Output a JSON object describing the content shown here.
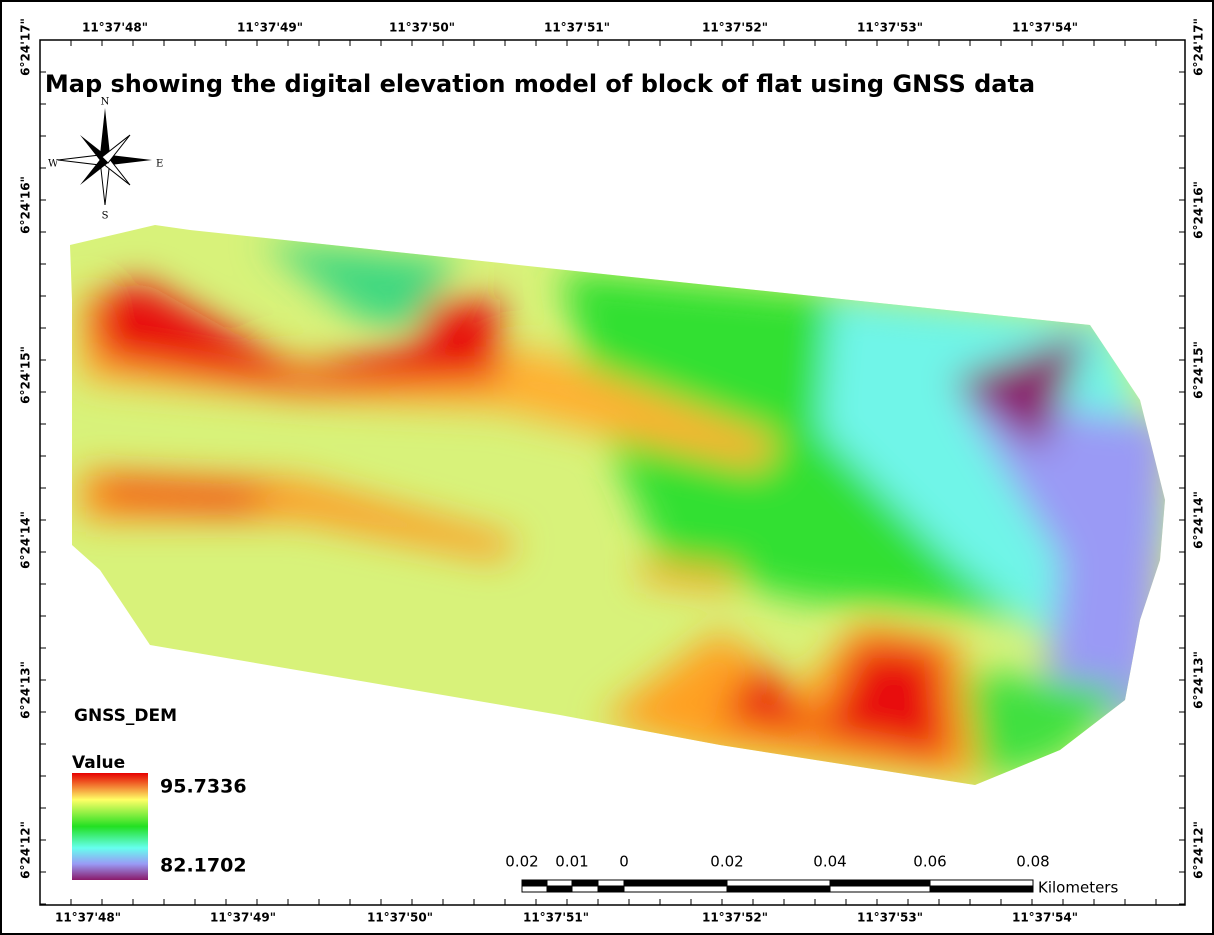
{
  "title": "Map showing the digital elevation model of block of flat using GNSS  data",
  "longitude_labels": [
    "11°37'48\"",
    "11°37'49\"",
    "11°37'50\"",
    "11°37'51\"",
    "11°37'52\"",
    "11°37'53\"",
    "11°37'54\""
  ],
  "latitude_labels": [
    "6°24'17\"",
    "6°24'16\"",
    "6°24'15\"",
    "6°24'14\"",
    "6°24'13\"",
    "6°24'12\""
  ],
  "north_arrow": {
    "n": "N",
    "e": "E",
    "s": "S",
    "w": "W"
  },
  "legend": {
    "title": "GNSS_DEM",
    "value_label": "Value",
    "high": "95.7336",
    "low": "82.1702"
  },
  "scale_bar": {
    "labels": [
      "0.02",
      "0.01",
      "0",
      "0.02",
      "0.04",
      "0.06",
      "0.08"
    ],
    "unit": "Kilometers"
  }
}
